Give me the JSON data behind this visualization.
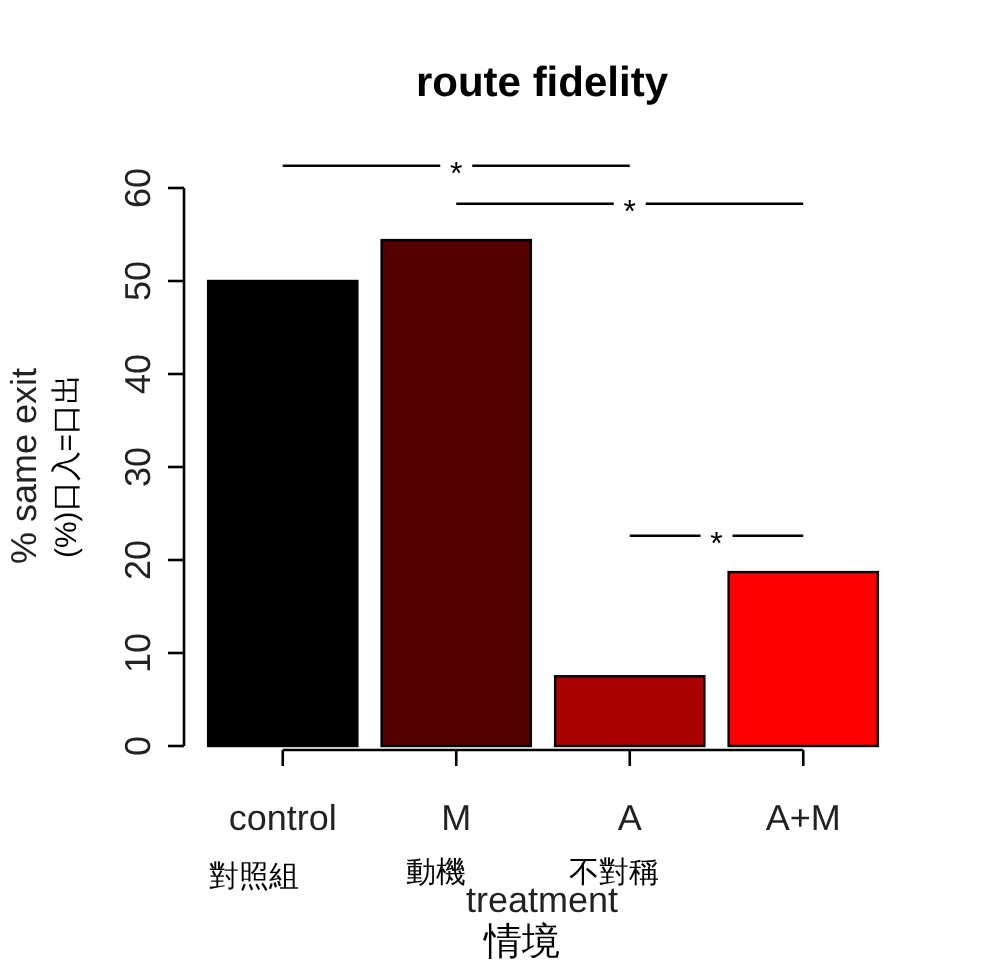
{
  "chart_data": {
    "type": "bar",
    "title": "route fidelity",
    "xlabel": "treatment",
    "ylabel": "% same exit",
    "categories": [
      "control",
      "M",
      "A",
      "A+M"
    ],
    "values": [
      50,
      54.4,
      7.5,
      18.7
    ],
    "colors": [
      "#000000",
      "#550000",
      "#aa0000",
      "#ff0000"
    ],
    "ylim": [
      0,
      60
    ],
    "yticks": [
      0,
      10,
      20,
      30,
      40,
      50,
      60
    ],
    "grid": false,
    "annotations": [
      "對照組",
      "動機",
      "不對稱",
      "情境",
      "(%)口入=口出",
      "*",
      "*",
      "*"
    ]
  }
}
